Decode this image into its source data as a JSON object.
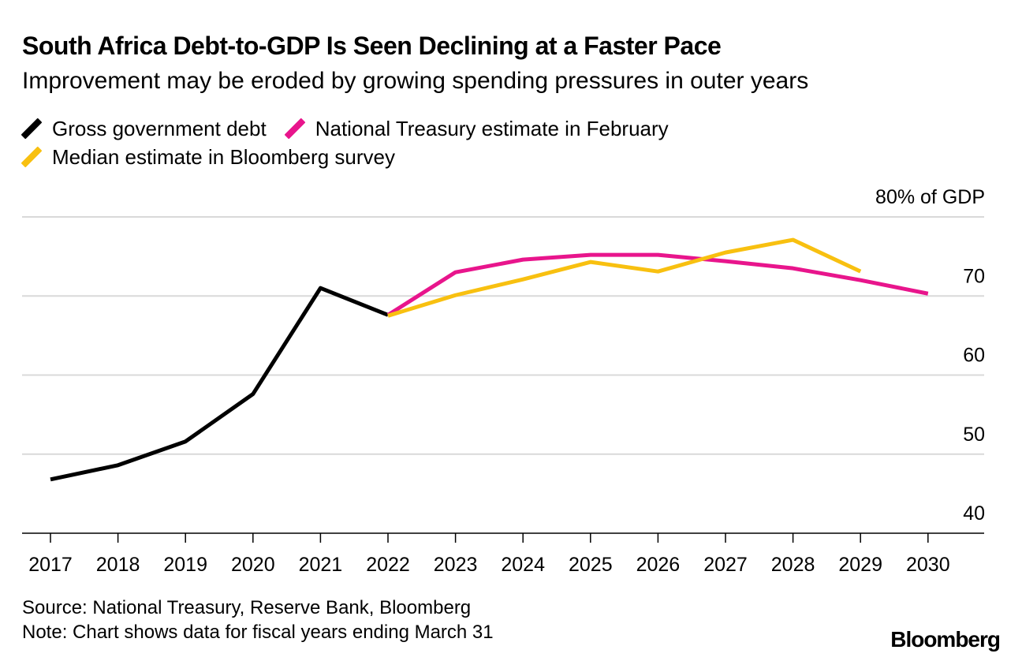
{
  "chart_data": {
    "type": "line",
    "title": "South Africa Debt-to-GDP Is Seen Declining at a Faster Pace",
    "subtitle": "Improvement may be eroded by growing spending pressures in outer years",
    "x": [
      "2017",
      "2018",
      "2019",
      "2020",
      "2021",
      "2022",
      "2023",
      "2024",
      "2025",
      "2026",
      "2027",
      "2028",
      "2029",
      "2030"
    ],
    "yunit_label": "80% of GDP",
    "yticks": [
      {
        "value": 80,
        "label": "80% of GDP"
      },
      {
        "value": 70,
        "label": "70"
      },
      {
        "value": 60,
        "label": "60"
      },
      {
        "value": 50,
        "label": "50"
      },
      {
        "value": 40,
        "label": "40"
      }
    ],
    "ylim": [
      40,
      80
    ],
    "grid": true,
    "legend_position": "top-left",
    "series": [
      {
        "name": "Gross government debt",
        "color": "#000000",
        "points": [
          {
            "x": "2017",
            "y": 46.8
          },
          {
            "x": "2018",
            "y": 48.6
          },
          {
            "x": "2019",
            "y": 51.6
          },
          {
            "x": "2020",
            "y": 57.6
          },
          {
            "x": "2021",
            "y": 71.0
          },
          {
            "x": "2022",
            "y": 67.6
          }
        ]
      },
      {
        "name": "National Treasury estimate in February",
        "color": "#E8158C",
        "points": [
          {
            "x": "2022",
            "y": 67.6
          },
          {
            "x": "2023",
            "y": 73.0
          },
          {
            "x": "2024",
            "y": 74.6
          },
          {
            "x": "2025",
            "y": 75.2
          },
          {
            "x": "2026",
            "y": 75.2
          },
          {
            "x": "2027",
            "y": 74.4
          },
          {
            "x": "2028",
            "y": 73.5
          },
          {
            "x": "2029",
            "y": 72.0
          },
          {
            "x": "2030",
            "y": 70.3
          }
        ]
      },
      {
        "name": "Median estimate in Bloomberg survey",
        "color": "#F8C010",
        "points": [
          {
            "x": "2022",
            "y": 67.5
          },
          {
            "x": "2023",
            "y": 70.1
          },
          {
            "x": "2024",
            "y": 72.1
          },
          {
            "x": "2025",
            "y": 74.3
          },
          {
            "x": "2026",
            "y": 73.1
          },
          {
            "x": "2027",
            "y": 75.5
          },
          {
            "x": "2028",
            "y": 77.1
          },
          {
            "x": "2029",
            "y": 73.1
          }
        ]
      }
    ]
  },
  "footer": {
    "source": "Source: National Treasury, Reserve Bank, Bloomberg",
    "note": "Note: Chart shows data for fiscal years ending March 31",
    "brand": "Bloomberg"
  }
}
